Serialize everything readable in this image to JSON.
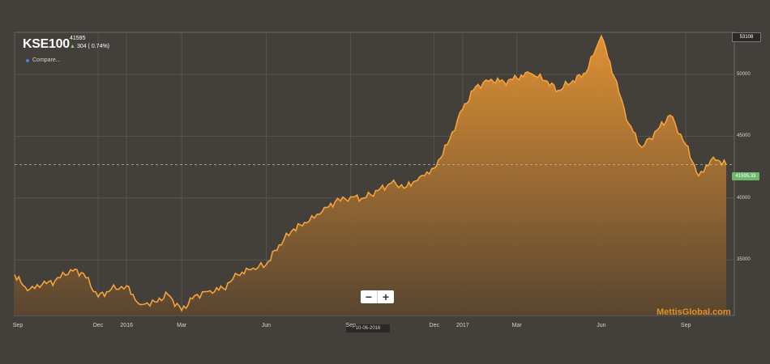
{
  "header": {
    "ticker": "KSE100",
    "last_value": "41595",
    "change": "304 ( 0.74%)",
    "compare_label": "Compare..."
  },
  "zoom": {
    "out_label": "−",
    "in_label": "+"
  },
  "watermark": "MettisGlobal.com",
  "date_marker": "10-06-2016",
  "max_label": "53108",
  "current_label": "41595.33",
  "colors": {
    "background": "#433f3a",
    "line": "#f5a23a",
    "fill_top": "#e69534",
    "fill_bottom": "#5a4630",
    "up": "#8fd16a",
    "current_badge": "#6db86a"
  },
  "chart_data": {
    "type": "area",
    "title": "",
    "xlabel": "",
    "ylabel": "",
    "ylim": [
      30500,
      53400
    ],
    "x_tick_labels": [
      "Sep",
      "Dec",
      "2016",
      "Mar",
      "Jun",
      "Sep",
      "Dec",
      "2017",
      "Mar",
      "Jun",
      "Sep"
    ],
    "y_tick_labels": [
      "35000",
      "40000",
      "45000",
      "50000"
    ],
    "y_ticks": [
      35000,
      40000,
      45000,
      50000
    ],
    "grid": true,
    "series": [
      {
        "x": [
          "2015-09-01",
          "2015-09-15",
          "2015-10-01",
          "2015-10-15",
          "2015-11-01",
          "2015-11-15",
          "2015-12-01",
          "2015-12-15",
          "2016-01-01",
          "2016-01-15",
          "2016-02-01",
          "2016-02-15",
          "2016-03-01",
          "2016-03-15",
          "2016-04-01",
          "2016-04-15",
          "2016-05-01",
          "2016-05-15",
          "2016-06-01",
          "2016-06-15",
          "2016-07-01",
          "2016-07-15",
          "2016-08-01",
          "2016-08-15",
          "2016-09-01",
          "2016-09-15",
          "2016-10-01",
          "2016-10-15",
          "2016-11-01",
          "2016-11-15",
          "2016-12-01",
          "2016-12-15",
          "2017-01-01",
          "2017-01-15",
          "2017-02-01",
          "2017-02-15",
          "2017-03-01",
          "2017-03-15",
          "2017-04-01",
          "2017-04-15",
          "2017-05-01",
          "2017-05-15",
          "2017-06-01",
          "2017-06-15",
          "2017-07-01",
          "2017-07-15",
          "2017-08-01",
          "2017-08-15",
          "2017-09-01",
          "2017-09-15",
          "2017-10-01",
          "2017-10-15"
        ],
        "values": [
          33800,
          32500,
          33000,
          33300,
          34200,
          33900,
          32000,
          32600,
          32900,
          31400,
          31600,
          32200,
          30900,
          32100,
          32500,
          32700,
          33800,
          34200,
          34600,
          36200,
          37500,
          38000,
          38900,
          39700,
          40100,
          40000,
          40600,
          41200,
          40900,
          41700,
          42400,
          44300,
          47200,
          49000,
          49600,
          49400,
          49700,
          50100,
          49500,
          48700,
          49500,
          50100,
          53100,
          49800,
          46000,
          44100,
          45500,
          46700,
          44300,
          41800,
          43300,
          42700
        ]
      }
    ]
  }
}
